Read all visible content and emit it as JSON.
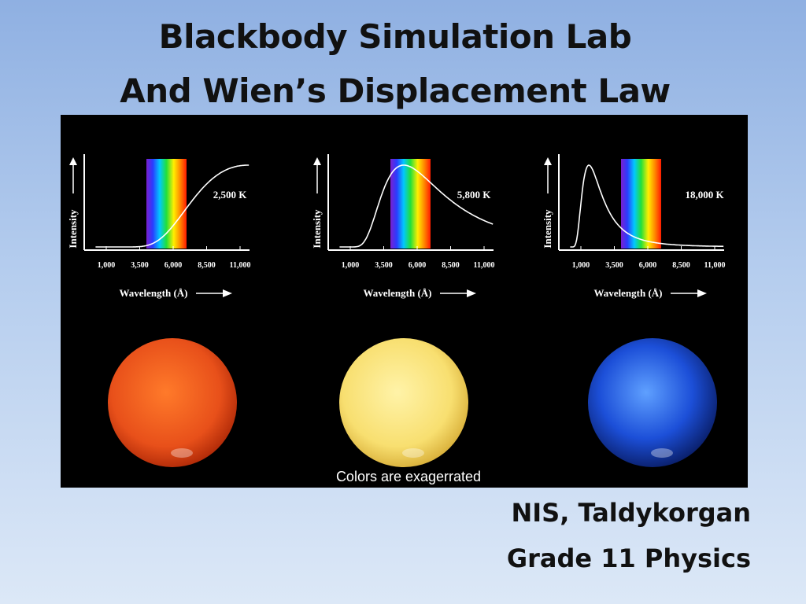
{
  "slide": {
    "title_line1": "Blackbody Simulation Lab",
    "title_line2": "And Wien’s Displacement Law",
    "footer_line1": "NIS, Taldykorgan",
    "footer_line2": "Grade 11 Physics"
  },
  "figure": {
    "caption": "Colors are exagerrated",
    "ylabel": "Intensity",
    "xlabel": "Wavelength (Å)",
    "xticks": [
      "1,000",
      "3,500",
      "6,000",
      "8,500",
      "11,000"
    ],
    "colors": {
      "background": "#000000",
      "axes": "#ffffff"
    }
  },
  "chart_data": [
    {
      "type": "line",
      "series": [
        {
          "name": "2,500 K",
          "peak_wavelength": 11600
        }
      ],
      "xlabel": "Wavelength (Å)",
      "ylabel": "Intensity",
      "x_ticks": [
        1000,
        3500,
        6000,
        8500,
        11000
      ],
      "visible_band": [
        4000,
        7000
      ],
      "star_color": "#e8501a"
    },
    {
      "type": "line",
      "series": [
        {
          "name": "5,800 K",
          "peak_wavelength": 5000
        }
      ],
      "xlabel": "Wavelength (Å)",
      "ylabel": "Intensity",
      "x_ticks": [
        1000,
        3500,
        6000,
        8500,
        11000
      ],
      "visible_band": [
        4000,
        7000
      ],
      "star_color": "#f8df70"
    },
    {
      "type": "line",
      "series": [
        {
          "name": "18,000 K",
          "peak_wavelength": 1600
        }
      ],
      "xlabel": "Wavelength (Å)",
      "ylabel": "Intensity",
      "x_ticks": [
        1000,
        3500,
        6000,
        8500,
        11000
      ],
      "visible_band": [
        4000,
        7000
      ],
      "star_color": "#1c4fd8"
    }
  ]
}
